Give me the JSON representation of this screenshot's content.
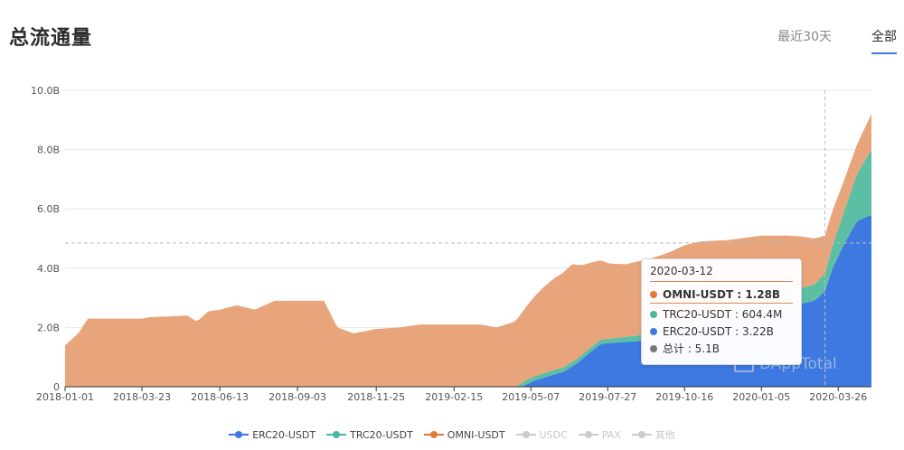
{
  "title": "总流通量",
  "tabs": [
    {
      "label": "最近30天",
      "active": false
    },
    {
      "label": "全部",
      "active": true
    }
  ],
  "chart_data": {
    "type": "area",
    "stacked": true,
    "x_ticks": [
      "2018-01-01",
      "2018-03-23",
      "2018-06-13",
      "2018-09-03",
      "2018-11-25",
      "2019-02-15",
      "2019-05-07",
      "2019-07-27",
      "2019-10-16",
      "2020-01-05",
      "2020-03-26"
    ],
    "y_ticks": [
      "0",
      "2.0B",
      "4.0B",
      "6.0B",
      "8.0B",
      "10.0B"
    ],
    "ylim": [
      0,
      10
    ],
    "y_unit": "B",
    "x_start": "2018-01-01",
    "x_end": "2020-04-30",
    "grid": true,
    "crosshair": {
      "date": "2020-03-12",
      "value": 4.85
    },
    "series": [
      {
        "name": "ERC20-USDT",
        "color": "#3d79e0",
        "points": [
          [
            "2018-01-01",
            0
          ],
          [
            "2019-04-25",
            0
          ],
          [
            "2019-05-01",
            0.05
          ],
          [
            "2019-05-10",
            0.2
          ],
          [
            "2019-05-25",
            0.35
          ],
          [
            "2019-06-10",
            0.5
          ],
          [
            "2019-06-25",
            0.8
          ],
          [
            "2019-07-10",
            1.2
          ],
          [
            "2019-07-20",
            1.45
          ],
          [
            "2019-08-10",
            1.5
          ],
          [
            "2019-09-01",
            1.55
          ],
          [
            "2019-09-15",
            1.6
          ],
          [
            "2019-10-01",
            1.8
          ],
          [
            "2019-10-16",
            2.0
          ],
          [
            "2019-11-01",
            2.05
          ],
          [
            "2019-12-01",
            2.2
          ],
          [
            "2020-01-05",
            2.3
          ],
          [
            "2020-02-01",
            2.6
          ],
          [
            "2020-02-15",
            2.8
          ],
          [
            "2020-03-01",
            2.9
          ],
          [
            "2020-03-12",
            3.22
          ],
          [
            "2020-03-20",
            4.0
          ],
          [
            "2020-04-01",
            4.8
          ],
          [
            "2020-04-15",
            5.6
          ],
          [
            "2020-04-30",
            5.8
          ]
        ]
      },
      {
        "name": "TRC20-USDT",
        "color": "#5bbfa4",
        "points": [
          [
            "2018-01-01",
            0
          ],
          [
            "2019-04-20",
            0
          ],
          [
            "2019-05-01",
            0.15
          ],
          [
            "2019-06-01",
            0.15
          ],
          [
            "2019-07-01",
            0.15
          ],
          [
            "2019-08-01",
            0.15
          ],
          [
            "2019-09-01",
            0.2
          ],
          [
            "2019-10-01",
            0.25
          ],
          [
            "2019-11-01",
            0.3
          ],
          [
            "2019-12-01",
            0.35
          ],
          [
            "2020-01-05",
            0.45
          ],
          [
            "2020-02-01",
            0.5
          ],
          [
            "2020-03-01",
            0.55
          ],
          [
            "2020-03-12",
            0.6
          ],
          [
            "2020-03-20",
            0.75
          ],
          [
            "2020-04-01",
            1.1
          ],
          [
            "2020-04-15",
            1.6
          ],
          [
            "2020-04-30",
            2.2
          ]
        ]
      },
      {
        "name": "OMNI-USDT",
        "color": "#e8a57c",
        "points": [
          [
            "2018-01-01",
            1.4
          ],
          [
            "2018-01-08",
            1.6
          ],
          [
            "2018-01-15",
            1.8
          ],
          [
            "2018-01-25",
            2.3
          ],
          [
            "2018-03-23",
            2.3
          ],
          [
            "2018-04-01",
            2.35
          ],
          [
            "2018-05-10",
            2.4
          ],
          [
            "2018-05-20",
            2.2
          ],
          [
            "2018-06-01",
            2.55
          ],
          [
            "2018-06-13",
            2.6
          ],
          [
            "2018-07-01",
            2.75
          ],
          [
            "2018-07-20",
            2.6
          ],
          [
            "2018-08-10",
            2.9
          ],
          [
            "2018-09-03",
            2.9
          ],
          [
            "2018-10-01",
            2.9
          ],
          [
            "2018-10-15",
            2.0
          ],
          [
            "2018-11-01",
            1.8
          ],
          [
            "2018-11-25",
            1.95
          ],
          [
            "2018-12-20",
            2.0
          ],
          [
            "2019-01-10",
            2.1
          ],
          [
            "2019-02-15",
            2.1
          ],
          [
            "2019-03-15",
            2.1
          ],
          [
            "2019-04-01",
            2.0
          ],
          [
            "2019-04-20",
            2.2
          ],
          [
            "2019-05-07",
            2.6
          ],
          [
            "2019-05-20",
            2.9
          ],
          [
            "2019-06-01",
            3.1
          ],
          [
            "2019-06-20",
            3.3
          ],
          [
            "2019-07-01",
            3.0
          ],
          [
            "2019-07-27",
            2.55
          ],
          [
            "2019-08-15",
            2.45
          ],
          [
            "2019-09-15",
            2.55
          ],
          [
            "2019-10-01",
            2.5
          ],
          [
            "2019-10-16",
            2.5
          ],
          [
            "2019-11-01",
            2.55
          ],
          [
            "2019-12-01",
            2.4
          ],
          [
            "2020-01-05",
            2.35
          ],
          [
            "2020-02-01",
            2.0
          ],
          [
            "2020-02-15",
            1.75
          ],
          [
            "2020-03-01",
            1.55
          ],
          [
            "2020-03-12",
            1.28
          ],
          [
            "2020-03-20",
            1.2
          ],
          [
            "2020-04-01",
            1.05
          ],
          [
            "2020-04-15",
            1.0
          ],
          [
            "2020-04-30",
            1.2
          ]
        ]
      },
      {
        "name": "USDC",
        "color": "#cccccc",
        "hidden": true,
        "points": []
      },
      {
        "name": "PAX",
        "color": "#cccccc",
        "hidden": true,
        "points": []
      },
      {
        "name": "其他",
        "color": "#cccccc",
        "hidden": true,
        "points": []
      }
    ]
  },
  "tooltip": {
    "date": "2020-03-12",
    "rows": [
      {
        "label": "OMNI-USDT : 1.28B",
        "color": "#e07b39",
        "highlight": true
      },
      {
        "label": "TRC20-USDT : 604.4M",
        "color": "#4bb79b",
        "highlight": false
      },
      {
        "label": "ERC20-USDT : 3.22B",
        "color": "#3d79e0",
        "highlight": false
      },
      {
        "label": "总计 : 5.1B",
        "color": "#777777",
        "highlight": false
      }
    ]
  },
  "legend": [
    {
      "name": "ERC20-USDT",
      "color": "#3d79e0",
      "active": true
    },
    {
      "name": "TRC20-USDT",
      "color": "#4bb79b",
      "active": true
    },
    {
      "name": "OMNI-USDT",
      "color": "#e07b39",
      "active": true
    },
    {
      "name": "USDC",
      "color": "#cccccc",
      "active": false
    },
    {
      "name": "PAX",
      "color": "#cccccc",
      "active": false
    },
    {
      "name": "其他",
      "color": "#cccccc",
      "active": false
    }
  ],
  "watermark": "DAppTotal"
}
